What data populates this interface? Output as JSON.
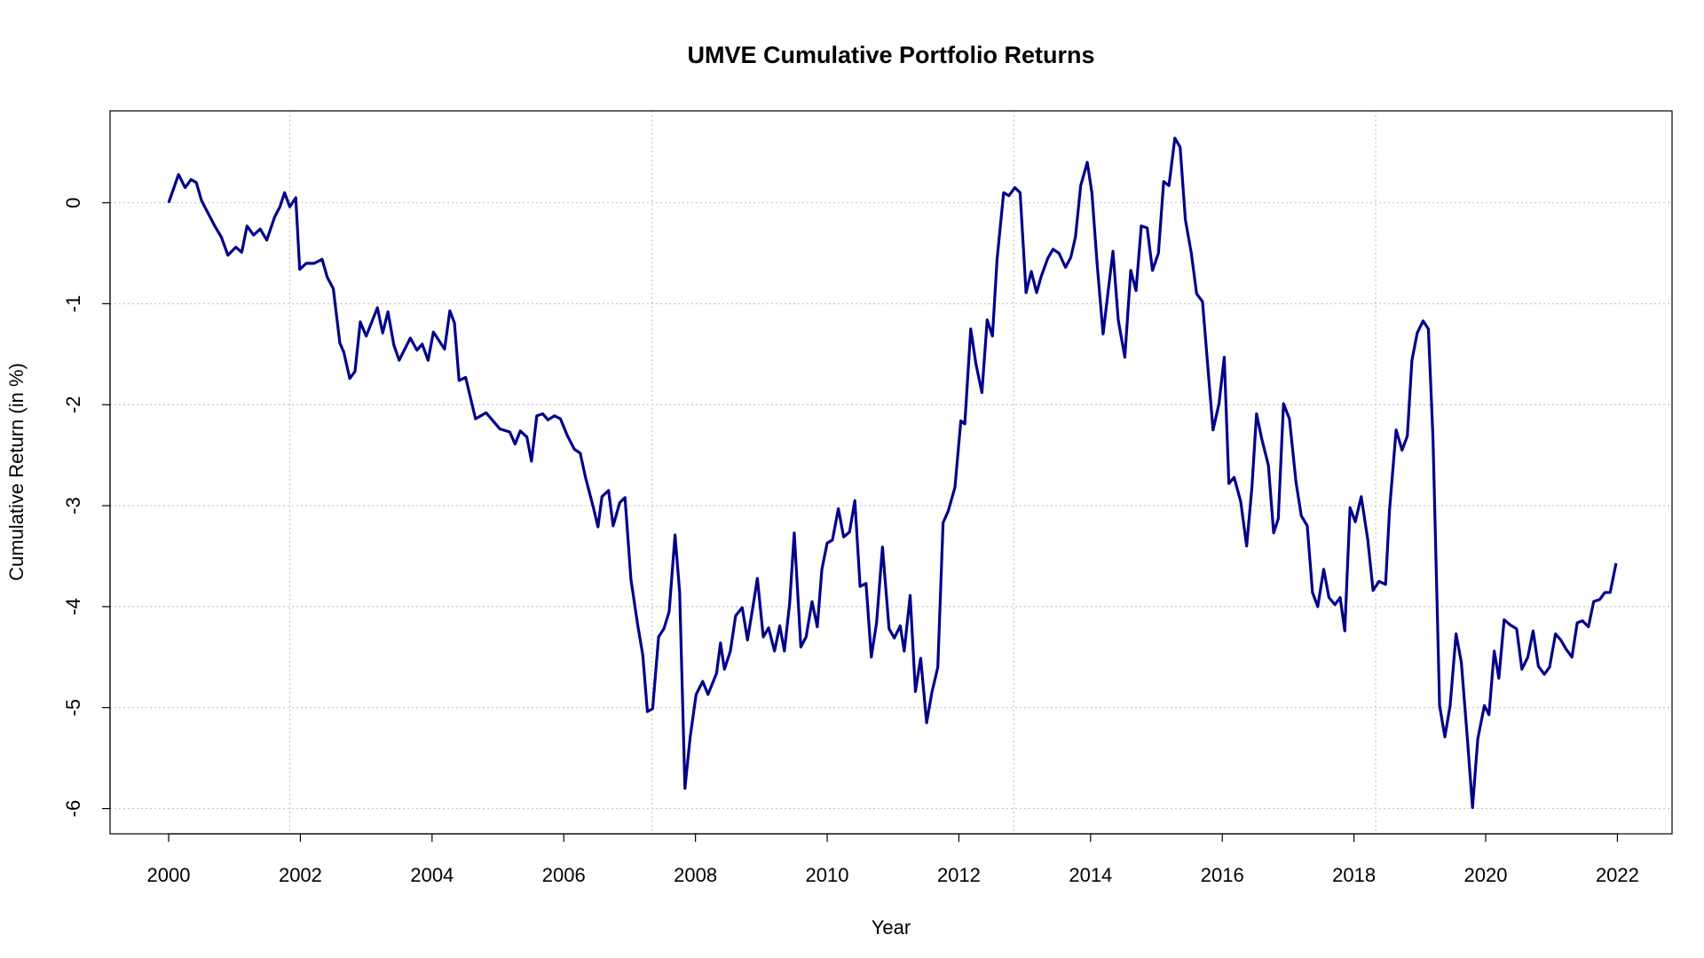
{
  "chart_data": {
    "type": "line",
    "title": "UMVE Cumulative Portfolio Returns",
    "x_label": "Year",
    "y_label": "Cumulative Return (in %)",
    "color": "#00008b",
    "grid": true,
    "xlim": [
      1999.11,
      2022.83
    ],
    "ylim": [
      -6.25,
      0.91
    ],
    "xticks": [
      2000,
      2002,
      2004,
      2006,
      2008,
      2010,
      2012,
      2014,
      2016,
      2018,
      2020,
      2022
    ],
    "yticks": [
      0,
      -1,
      -2,
      -3,
      -4,
      -5,
      -6
    ],
    "xgrid": [
      2001.84,
      2007.34,
      2012.83,
      2018.33
    ],
    "x": [
      2000,
      2000.15,
      2000.25,
      2000.34,
      2000.42,
      2000.5,
      2000.7,
      2000.8,
      2000.9,
      2001.02,
      2001.11,
      2001.19,
      2001.29,
      2001.39,
      2001.49,
      2001.61,
      2001.69,
      2001.76,
      2001.84,
      2001.93,
      2001.99,
      2002.09,
      2002.21,
      2002.33,
      2002.41,
      2002.5,
      2002.6,
      2002.66,
      2002.75,
      2002.83,
      2002.91,
      2003,
      2003.17,
      2003.25,
      2003.33,
      2003.42,
      2003.5,
      2003.67,
      2003.77,
      2003.85,
      2003.94,
      2004.02,
      2004.19,
      2004.27,
      2004.34,
      2004.41,
      2004.51,
      2004.66,
      2004.82,
      2005.03,
      2005.18,
      2005.26,
      2005.34,
      2005.44,
      2005.51,
      2005.59,
      2005.68,
      2005.76,
      2005.86,
      2005.95,
      2006.05,
      2006.16,
      2006.25,
      2006.33,
      2006.45,
      2006.52,
      2006.58,
      2006.68,
      2006.75,
      2006.85,
      2006.93,
      2007.02,
      2007.12,
      2007.2,
      2007.27,
      2007.35,
      2007.44,
      2007.52,
      2007.6,
      2007.69,
      2007.76,
      2007.84,
      2007.92,
      2008.01,
      2008.11,
      2008.19,
      2008.32,
      2008.38,
      2008.44,
      2008.53,
      2008.61,
      2008.71,
      2008.79,
      2008.88,
      2008.94,
      2009.03,
      2009.11,
      2009.2,
      2009.28,
      2009.35,
      2009.43,
      2009.5,
      2009.6,
      2009.68,
      2009.77,
      2009.85,
      2009.92,
      2010,
      2010.08,
      2010.17,
      2010.25,
      2010.34,
      2010.42,
      2010.5,
      2010.59,
      2010.67,
      2010.75,
      2010.84,
      2010.94,
      2011.02,
      2011.11,
      2011.17,
      2011.26,
      2011.34,
      2011.42,
      2011.51,
      2011.59,
      2011.68,
      2011.76,
      2011.84,
      2011.94,
      2012.03,
      2012.09,
      2012.18,
      2012.26,
      2012.35,
      2012.43,
      2012.51,
      2012.58,
      2012.68,
      2012.76,
      2012.85,
      2012.93,
      2013.02,
      2013.1,
      2013.18,
      2013.25,
      2013.35,
      2013.43,
      2013.52,
      2013.62,
      2013.7,
      2013.77,
      2013.85,
      2013.95,
      2014.02,
      2014.1,
      2014.19,
      2014.27,
      2014.34,
      2014.42,
      2014.52,
      2014.61,
      2014.69,
      2014.77,
      2014.86,
      2014.94,
      2015.03,
      2015.11,
      2015.19,
      2015.28,
      2015.36,
      2015.44,
      2015.53,
      2015.61,
      2015.7,
      2015.8,
      2015.86,
      2015.95,
      2016.03,
      2016.1,
      2016.18,
      2016.28,
      2016.37,
      2016.45,
      2016.52,
      2016.6,
      2016.7,
      2016.78,
      2016.85,
      2016.93,
      2017.02,
      2017.12,
      2017.2,
      2017.29,
      2017.37,
      2017.45,
      2017.54,
      2017.62,
      2017.71,
      2017.79,
      2017.86,
      2017.94,
      2018.02,
      2018.11,
      2018.21,
      2018.29,
      2018.38,
      2018.48,
      2018.54,
      2018.64,
      2018.73,
      2018.81,
      2018.88,
      2018.96,
      2019.05,
      2019.13,
      2019.2,
      2019.3,
      2019.38,
      2019.46,
      2019.55,
      2019.63,
      2019.72,
      2019.8,
      2019.88,
      2019.98,
      2020.05,
      2020.13,
      2020.2,
      2020.28,
      2020.37,
      2020.47,
      2020.55,
      2020.64,
      2020.72,
      2020.8,
      2020.89,
      2020.97,
      2021.06,
      2021.14,
      2021.22,
      2021.31,
      2021.39,
      2021.47,
      2021.56,
      2021.64,
      2021.73,
      2021.81,
      2021.89,
      2021.98
    ],
    "values": [
      0,
      0.28,
      0.15,
      0.23,
      0.2,
      0.02,
      -0.23,
      -0.34,
      -0.52,
      -0.44,
      -0.49,
      -0.23,
      -0.32,
      -0.26,
      -0.37,
      -0.14,
      -0.04,
      0.1,
      -0.04,
      0.05,
      -0.66,
      -0.6,
      -0.6,
      -0.56,
      -0.74,
      -0.85,
      -1.39,
      -1.48,
      -1.74,
      -1.67,
      -1.18,
      -1.32,
      -1.04,
      -1.29,
      -1.08,
      -1.41,
      -1.56,
      -1.34,
      -1.46,
      -1.4,
      -1.56,
      -1.28,
      -1.45,
      -1.07,
      -1.19,
      -1.76,
      -1.73,
      -2.14,
      -2.08,
      -2.24,
      -2.27,
      -2.39,
      -2.26,
      -2.32,
      -2.56,
      -2.11,
      -2.09,
      -2.15,
      -2.11,
      -2.14,
      -2.3,
      -2.44,
      -2.48,
      -2.72,
      -3.02,
      -3.21,
      -2.91,
      -2.85,
      -3.2,
      -2.97,
      -2.92,
      -3.73,
      -4.17,
      -4.48,
      -5.04,
      -5.01,
      -4.3,
      -4.22,
      -4.05,
      -3.29,
      -3.86,
      -5.8,
      -5.29,
      -4.87,
      -4.74,
      -4.87,
      -4.66,
      -4.36,
      -4.62,
      -4.44,
      -4.09,
      -4.01,
      -4.33,
      -3.97,
      -3.72,
      -4.3,
      -4.21,
      -4.44,
      -4.19,
      -4.44,
      -3.97,
      -3.27,
      -4.4,
      -4.3,
      -3.95,
      -4.2,
      -3.63,
      -3.37,
      -3.34,
      -3.03,
      -3.31,
      -3.26,
      -2.95,
      -3.8,
      -3.77,
      -4.5,
      -4.16,
      -3.41,
      -4.22,
      -4.31,
      -4.19,
      -4.44,
      -3.89,
      -4.84,
      -4.51,
      -5.15,
      -4.85,
      -4.6,
      -3.17,
      -3.05,
      -2.82,
      -2.16,
      -2.19,
      -1.25,
      -1.6,
      -1.88,
      -1.16,
      -1.32,
      -0.56,
      0.1,
      0.07,
      0.15,
      0.1,
      -0.89,
      -0.68,
      -0.89,
      -0.73,
      -0.55,
      -0.46,
      -0.5,
      -0.64,
      -0.54,
      -0.34,
      0.17,
      0.4,
      0.1,
      -0.61,
      -1.3,
      -0.86,
      -0.48,
      -1.16,
      -1.53,
      -0.67,
      -0.87,
      -0.23,
      -0.25,
      -0.67,
      -0.5,
      0.21,
      0.17,
      0.64,
      0.55,
      -0.17,
      -0.5,
      -0.9,
      -0.98,
      -1.78,
      -2.25,
      -1.99,
      -1.53,
      -2.78,
      -2.72,
      -2.96,
      -3.4,
      -2.82,
      -2.09,
      -2.34,
      -2.6,
      -3.27,
      -3.13,
      -1.99,
      -2.14,
      -2.77,
      -3.1,
      -3.2,
      -3.86,
      -4.0,
      -3.63,
      -3.91,
      -3.98,
      -3.91,
      -4.24,
      -3.02,
      -3.16,
      -2.91,
      -3.34,
      -3.84,
      -3.75,
      -3.78,
      -3.04,
      -2.25,
      -2.45,
      -2.31,
      -1.56,
      -1.29,
      -1.17,
      -1.25,
      -2.34,
      -4.98,
      -5.29,
      -4.98,
      -4.27,
      -4.55,
      -5.29,
      -5.99,
      -5.31,
      -4.98,
      -5.07,
      -4.44,
      -4.71,
      -4.13,
      -4.18,
      -4.22,
      -4.62,
      -4.5,
      -4.24,
      -4.59,
      -4.67,
      -4.6,
      -4.27,
      -4.33,
      -4.42,
      -4.5,
      -4.16,
      -4.14,
      -4.2,
      -3.95,
      -3.93,
      -3.86,
      -3.86,
      -3.57
    ]
  }
}
